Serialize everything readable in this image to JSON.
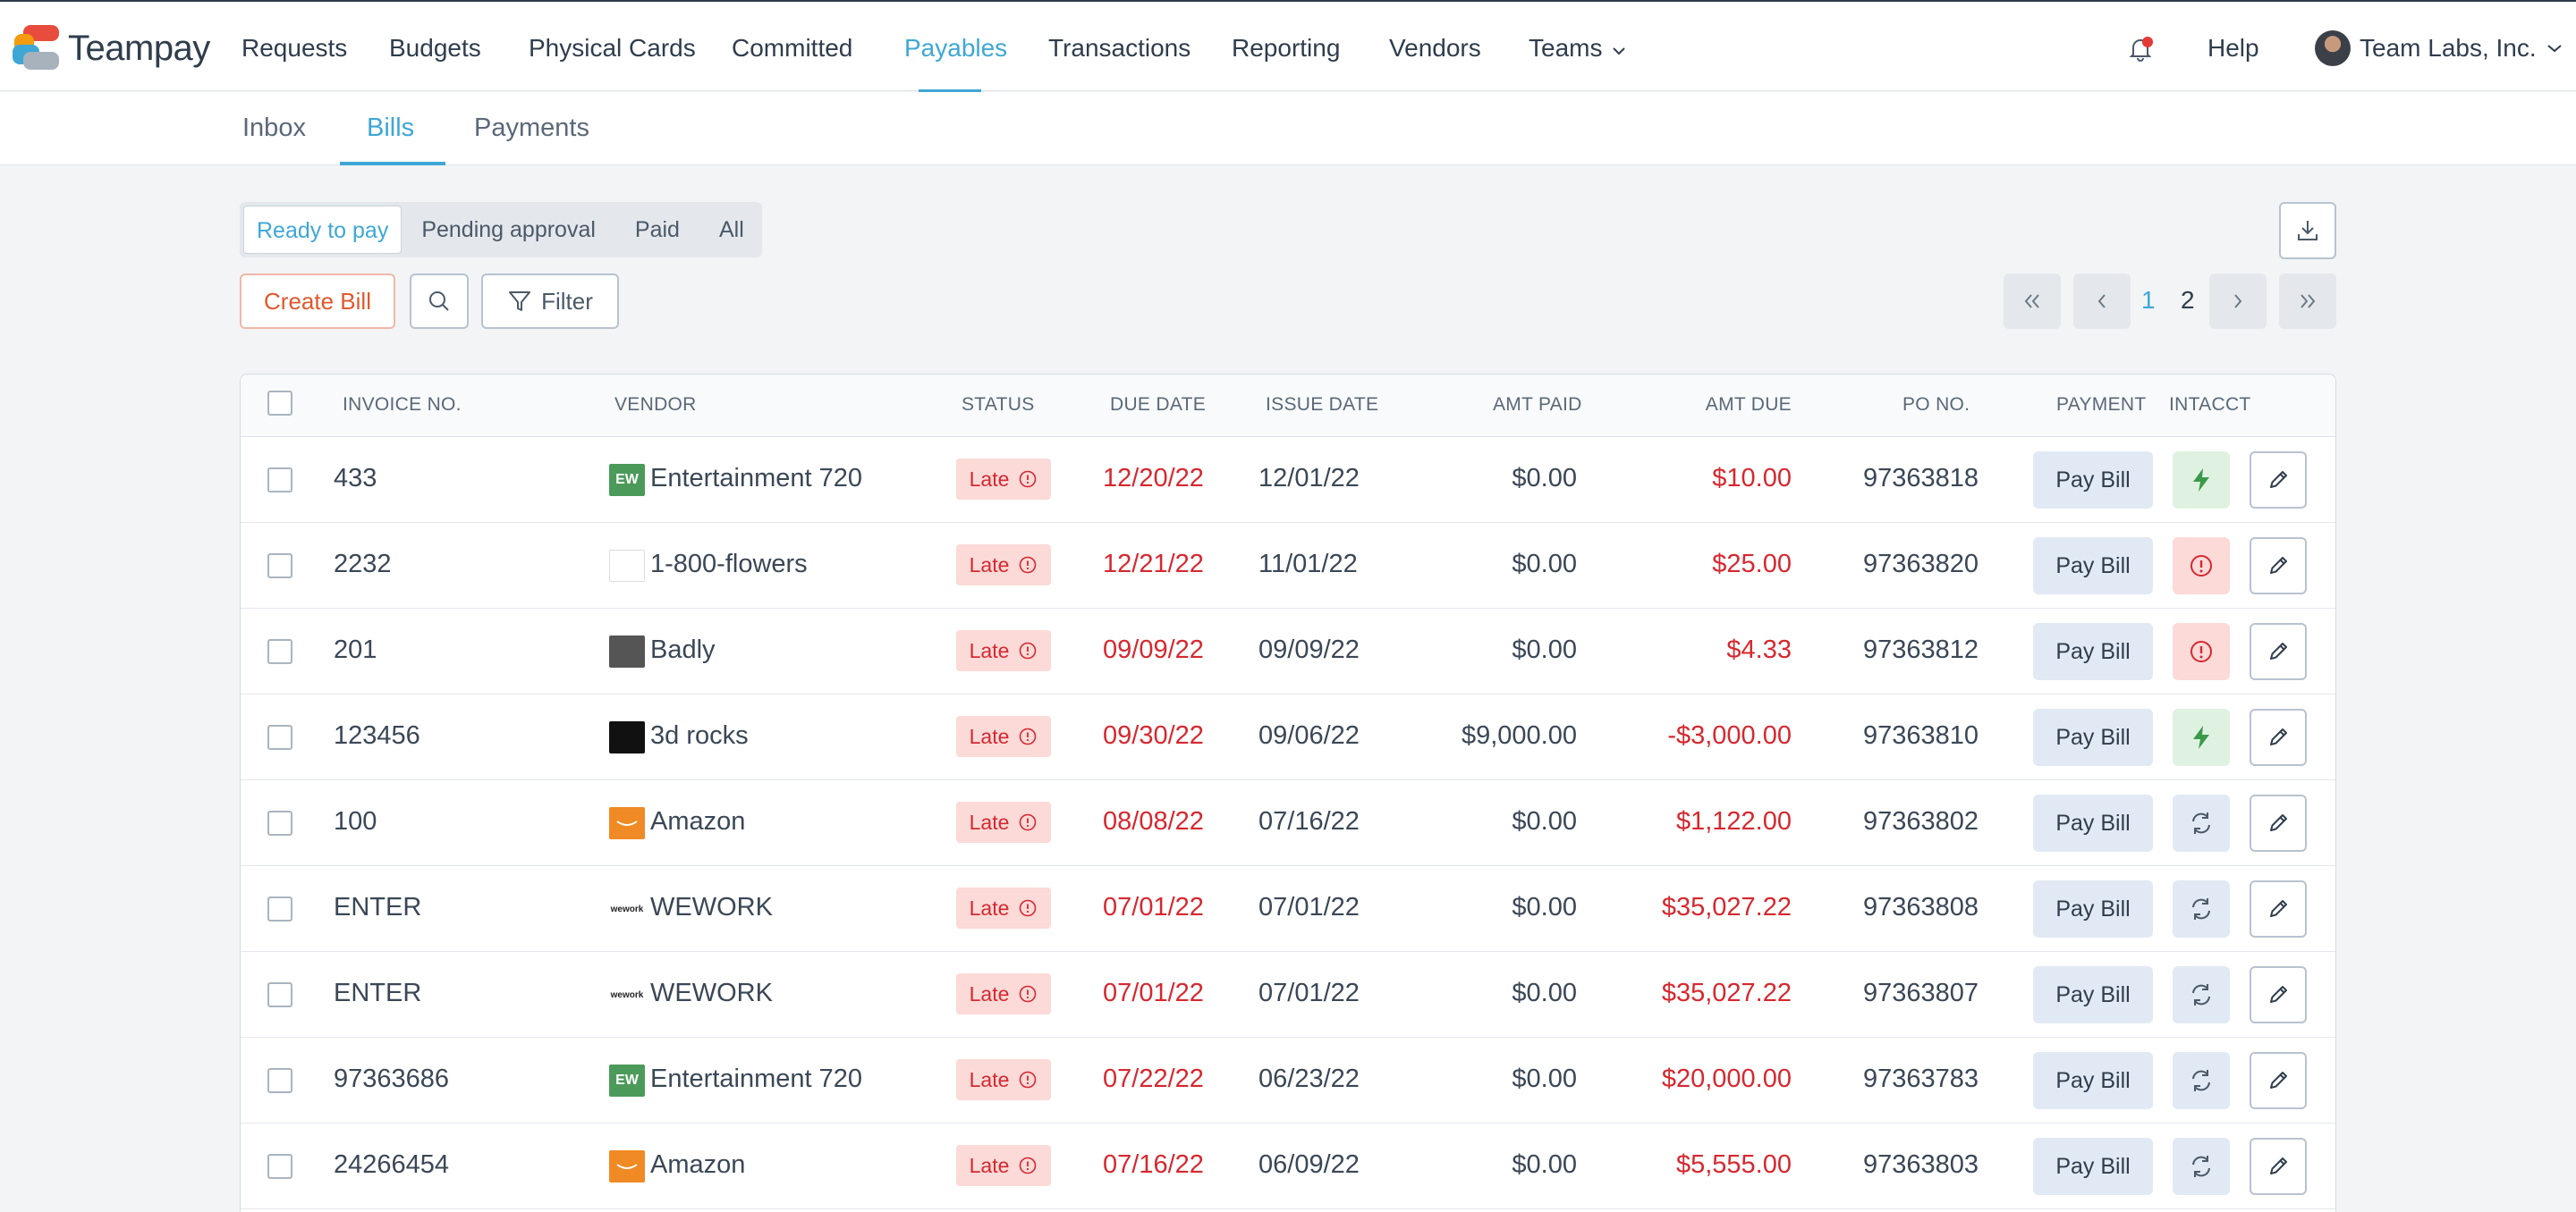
{
  "brand": {
    "name": "Teampay"
  },
  "nav": {
    "items": [
      "Requests",
      "Budgets",
      "Physical Cards",
      "Committed",
      "Payables",
      "Transactions",
      "Reporting",
      "Vendors",
      "Teams"
    ],
    "active": "Payables",
    "help": "Help",
    "account": "Team Labs, Inc."
  },
  "subtabs": {
    "items": [
      "Inbox",
      "Bills",
      "Payments"
    ],
    "active": "Bills"
  },
  "status_filter": {
    "items": [
      "Ready to pay",
      "Pending approval",
      "Paid",
      "All"
    ],
    "active": "Ready to pay"
  },
  "toolbar": {
    "create_bill": "Create Bill",
    "filter": "Filter"
  },
  "pagination": {
    "pages": [
      "1",
      "2"
    ],
    "current": "1"
  },
  "colors": {
    "accent": "#3ea7d6",
    "danger": "#d6282f",
    "create": "#e0582c"
  },
  "table": {
    "headers": {
      "invoice": "INVOICE NO.",
      "vendor": "VENDOR",
      "status": "STATUS",
      "due": "DUE DATE",
      "issue": "ISSUE DATE",
      "amt_paid": "AMT PAID",
      "amt_due": "AMT DUE",
      "po": "PO NO.",
      "payment": "PAYMENT",
      "intacct": "INTACCT"
    },
    "rows": [
      {
        "invoice": "433",
        "vendor": "Entertainment 720",
        "vendor_logo": "EW",
        "status": "Late",
        "due": "12/20/22",
        "issue": "12/01/22",
        "amt_paid": "$0.00",
        "amt_due": "$10.00",
        "po": "97363818",
        "payment": "Pay Bill",
        "intacct": "bolt"
      },
      {
        "invoice": "2232",
        "vendor": "1-800-flowers",
        "vendor_logo": "",
        "status": "Late",
        "due": "12/21/22",
        "issue": "11/01/22",
        "amt_paid": "$0.00",
        "amt_due": "$25.00",
        "po": "97363820",
        "payment": "Pay Bill",
        "intacct": "error"
      },
      {
        "invoice": "201",
        "vendor": "Badly",
        "vendor_logo": "",
        "status": "Late",
        "due": "09/09/22",
        "issue": "09/09/22",
        "amt_paid": "$0.00",
        "amt_due": "$4.33",
        "po": "97363812",
        "payment": "Pay Bill",
        "intacct": "error"
      },
      {
        "invoice": "123456",
        "vendor": "3d rocks",
        "vendor_logo": "",
        "status": "Late",
        "due": "09/30/22",
        "issue": "09/06/22",
        "amt_paid": "$9,000.00",
        "amt_due": "-$3,000.00",
        "po": "97363810",
        "payment": "Pay Bill",
        "intacct": "bolt"
      },
      {
        "invoice": "100",
        "vendor": "Amazon",
        "vendor_logo": "",
        "status": "Late",
        "due": "08/08/22",
        "issue": "07/16/22",
        "amt_paid": "$0.00",
        "amt_due": "$1,122.00",
        "po": "97363802",
        "payment": "Pay Bill",
        "intacct": "sync"
      },
      {
        "invoice": "ENTER",
        "vendor": "WEWORK",
        "vendor_logo": "wework",
        "status": "Late",
        "due": "07/01/22",
        "issue": "07/01/22",
        "amt_paid": "$0.00",
        "amt_due": "$35,027.22",
        "po": "97363808",
        "payment": "Pay Bill",
        "intacct": "sync"
      },
      {
        "invoice": "ENTER",
        "vendor": "WEWORK",
        "vendor_logo": "wework",
        "status": "Late",
        "due": "07/01/22",
        "issue": "07/01/22",
        "amt_paid": "$0.00",
        "amt_due": "$35,027.22",
        "po": "97363807",
        "payment": "Pay Bill",
        "intacct": "sync"
      },
      {
        "invoice": "97363686",
        "vendor": "Entertainment 720",
        "vendor_logo": "EW",
        "status": "Late",
        "due": "07/22/22",
        "issue": "06/23/22",
        "amt_paid": "$0.00",
        "amt_due": "$20,000.00",
        "po": "97363783",
        "payment": "Pay Bill",
        "intacct": "sync"
      },
      {
        "invoice": "24266454",
        "vendor": "Amazon",
        "vendor_logo": "",
        "status": "Late",
        "due": "07/16/22",
        "issue": "06/09/22",
        "amt_paid": "$0.00",
        "amt_due": "$5,555.00",
        "po": "97363803",
        "payment": "Pay Bill",
        "intacct": "sync"
      }
    ]
  }
}
